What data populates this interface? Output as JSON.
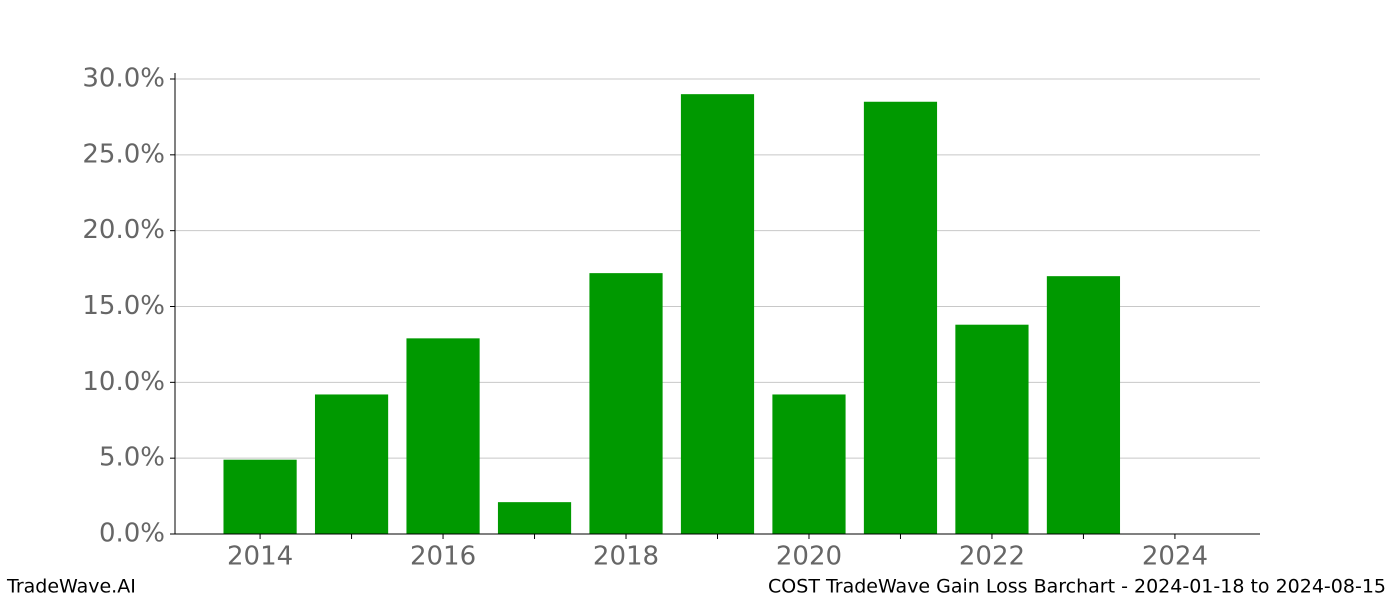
{
  "chart_data": {
    "type": "bar",
    "title": "COST TradeWave Gain Loss Barchart - 2024-01-18 to 2024-08-15",
    "source": "TradeWave.AI",
    "x": [
      2014,
      2015,
      2016,
      2017,
      2018,
      2019,
      2020,
      2021,
      2022,
      2023
    ],
    "values": [
      4.9,
      9.2,
      12.9,
      2.1,
      17.2,
      29.0,
      9.2,
      28.5,
      13.8,
      17.0
    ],
    "color": "#009900",
    "xlim": [
      2013.07,
      2024.93
    ],
    "xticks": [
      2014,
      2016,
      2018,
      2020,
      2022,
      2024
    ],
    "xminorticks": [
      2015,
      2017,
      2019,
      2021,
      2023
    ],
    "ylim": [
      0,
      30
    ],
    "yticks": [
      {
        "value": 0,
        "label": "0.0%"
      },
      {
        "value": 5,
        "label": "5.0%"
      },
      {
        "value": 10,
        "label": "10.0%"
      },
      {
        "value": 15,
        "label": "15.0%"
      },
      {
        "value": 20,
        "label": "20.0%"
      },
      {
        "value": 25,
        "label": "25.0%"
      },
      {
        "value": 30,
        "label": "30.0%"
      }
    ],
    "grid": true
  }
}
